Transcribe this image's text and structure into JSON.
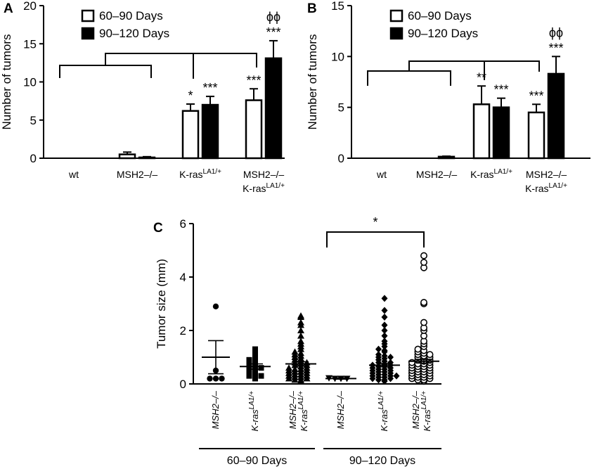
{
  "chart_data": [
    {
      "panel": "A",
      "type": "bar",
      "ylabel": "Number of tumors",
      "ylim": [
        0,
        20
      ],
      "yticks": [
        0,
        5,
        10,
        15,
        20
      ],
      "categories": [
        "wt",
        "MSH2–/–",
        "K-ras",
        "MSH2–/– K-ras"
      ],
      "category_lines": [
        [
          "wt"
        ],
        [
          "MSH2–/–"
        ],
        [
          "K-ras|LA1/+"
        ],
        [
          "MSH2–/–",
          "K-ras|LA1/+"
        ]
      ],
      "series": [
        {
          "name": "60–90 Days",
          "fill": "white",
          "values": [
            0,
            0.5,
            6.2,
            7.6
          ],
          "errors": [
            0,
            0.3,
            0.9,
            1.5
          ]
        },
        {
          "name": "90–120 Days",
          "fill": "black",
          "values": [
            0,
            0.1,
            7.0,
            13.1
          ],
          "errors": [
            0,
            0.1,
            1.1,
            2.3
          ]
        }
      ],
      "significance": [
        {
          "category": 2,
          "series": 0,
          "label": "*"
        },
        {
          "category": 2,
          "series": 1,
          "label": "***"
        },
        {
          "category": 3,
          "series": 0,
          "label": "***"
        },
        {
          "category": 3,
          "series": 1,
          "label": "***"
        },
        {
          "category": 3,
          "series": 1,
          "label": "ϕϕ",
          "level": 2
        }
      ],
      "legend": "top-left"
    },
    {
      "panel": "B",
      "type": "bar",
      "ylabel": "Number of tumors",
      "ylim": [
        0,
        15
      ],
      "yticks": [
        0,
        5,
        10,
        15
      ],
      "categories": [
        "wt",
        "MSH2–/–",
        "K-ras",
        "MSH2–/– K-ras"
      ],
      "category_lines": [
        [
          "wt"
        ],
        [
          "MSH2–/–"
        ],
        [
          "K-ras|LA1/+"
        ],
        [
          "MSH2–/–",
          "K-ras|LA1/+"
        ]
      ],
      "series": [
        {
          "name": "60–90 Days",
          "fill": "white",
          "values": [
            0,
            0,
            5.3,
            4.5
          ],
          "errors": [
            0,
            0,
            1.8,
            0.8
          ]
        },
        {
          "name": "90–120 Days",
          "fill": "black",
          "values": [
            0,
            0.15,
            5.0,
            8.3
          ],
          "errors": [
            0,
            0.05,
            0.9,
            1.7
          ]
        }
      ],
      "significance": [
        {
          "category": 2,
          "series": 0,
          "label": "**"
        },
        {
          "category": 2,
          "series": 1,
          "label": "***"
        },
        {
          "category": 3,
          "series": 0,
          "label": "***"
        },
        {
          "category": 3,
          "series": 1,
          "label": "***"
        },
        {
          "category": 3,
          "series": 1,
          "label": "ϕϕ",
          "level": 2
        }
      ],
      "legend": "top-left"
    },
    {
      "panel": "C",
      "type": "scatter",
      "ylabel": "Tumor size (mm)",
      "ylim": [
        0,
        6
      ],
      "yticks": [
        0,
        2,
        4,
        6
      ],
      "groups": [
        {
          "label": "MSH2–/–",
          "period": 0,
          "marker": "circle-filled",
          "mean": 1.0,
          "sem": 0.62,
          "values": [
            2.9,
            0.5,
            0.2,
            0.2,
            0.2
          ]
        },
        {
          "label": "K-ras|LA1/+",
          "period": 0,
          "marker": "square-filled",
          "mean": 0.65,
          "sem": 0.1,
          "values": [
            0.2,
            0.25,
            0.3,
            0.3,
            0.35,
            0.45,
            0.5,
            0.55,
            0.6,
            0.6,
            0.65,
            0.7,
            0.75,
            0.85,
            0.9,
            1.05,
            1.2,
            1.3
          ]
        },
        {
          "label": "MSH2–/– K-ras|LA1/+",
          "period": 0,
          "marker": "triangle-up-filled",
          "mean": 0.75,
          "sem": 0.08,
          "values": [
            0.1,
            0.15,
            0.15,
            0.2,
            0.2,
            0.25,
            0.25,
            0.3,
            0.3,
            0.35,
            0.35,
            0.4,
            0.4,
            0.45,
            0.45,
            0.5,
            0.5,
            0.55,
            0.55,
            0.6,
            0.6,
            0.65,
            0.7,
            0.7,
            0.75,
            0.8,
            0.8,
            0.85,
            0.9,
            0.95,
            1.0,
            1.05,
            1.1,
            1.15,
            1.2,
            1.3,
            1.4,
            1.5,
            1.6,
            1.8,
            2.0,
            2.2,
            2.3,
            2.5,
            2.55
          ]
        },
        {
          "label": "MSH2–/–",
          "period": 1,
          "marker": "triangle-down-filled",
          "mean": 0.2,
          "sem": 0.02,
          "values": [
            0.2,
            0.2,
            0.2,
            0.22
          ]
        },
        {
          "label": "K-ras|LA1/+",
          "period": 1,
          "marker": "diamond-filled",
          "mean": 0.7,
          "sem": 0.06,
          "values": [
            0.1,
            0.15,
            0.15,
            0.2,
            0.2,
            0.25,
            0.25,
            0.3,
            0.3,
            0.3,
            0.35,
            0.35,
            0.4,
            0.4,
            0.45,
            0.45,
            0.5,
            0.5,
            0.55,
            0.55,
            0.6,
            0.6,
            0.65,
            0.65,
            0.7,
            0.7,
            0.75,
            0.8,
            0.8,
            0.85,
            0.9,
            0.95,
            1.0,
            1.0,
            1.05,
            1.1,
            1.2,
            1.25,
            1.3,
            1.4,
            1.5,
            1.6,
            1.8,
            2.0,
            2.2,
            2.5,
            2.75,
            3.2
          ]
        },
        {
          "label": "MSH2–/– K-ras|LA1/+",
          "period": 1,
          "marker": "circle-open",
          "mean": 0.85,
          "sem": 0.07,
          "values": [
            0.1,
            0.15,
            0.15,
            0.2,
            0.2,
            0.25,
            0.25,
            0.3,
            0.3,
            0.35,
            0.35,
            0.4,
            0.4,
            0.45,
            0.45,
            0.5,
            0.5,
            0.55,
            0.55,
            0.6,
            0.6,
            0.65,
            0.65,
            0.7,
            0.7,
            0.75,
            0.75,
            0.8,
            0.8,
            0.85,
            0.9,
            0.9,
            0.95,
            1.0,
            1.0,
            1.05,
            1.1,
            1.1,
            1.15,
            1.2,
            1.25,
            1.3,
            1.4,
            1.5,
            1.6,
            1.8,
            2.0,
            2.1,
            2.3,
            3.0,
            3.05,
            4.35,
            4.55,
            4.8
          ]
        }
      ],
      "period_labels": [
        "60–90 Days",
        "90–120 Days"
      ],
      "significance": [
        {
          "from": 3,
          "to": 5,
          "label": "*"
        }
      ]
    }
  ]
}
